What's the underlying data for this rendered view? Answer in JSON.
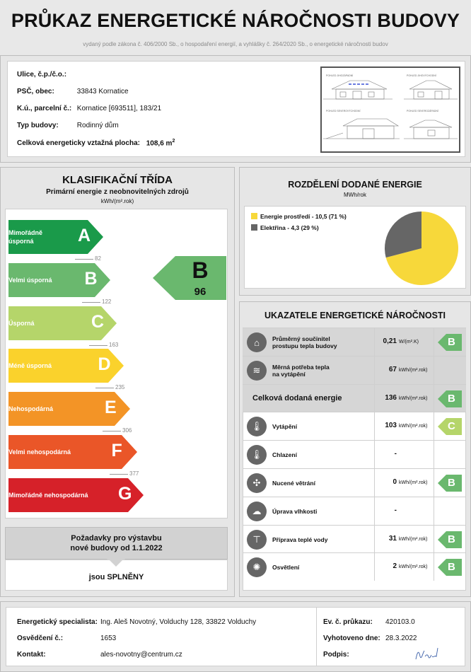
{
  "header": {
    "title": "PRŮKAZ ENERGETICKÉ NÁROČNOSTI BUDOVY",
    "subtitle": "vydaný podle zákona č. 406/2000 Sb., o hospodaření energií, a vyhlášky č. 264/2020 Sb., o energetické náročnosti budov"
  },
  "building": {
    "street_label": "Ulice, č.p./č.o.:",
    "street_value": "",
    "psc_label": "PSČ, obec:",
    "psc_value": "33843 Kornatice",
    "ku_label": "K.ú., parcelní č.:",
    "ku_value": "Kornatice [693511], 183/21",
    "type_label": "Typ budovy:",
    "type_value": "Rodinný dům",
    "area_label": "Celková energeticky vztažná plocha:",
    "area_value": "108,6 m",
    "area_sup": "2",
    "views": [
      "POHLED JIHOZÁPADNÍ",
      "POHLED JIHOVÝCHODNÍ",
      "POHLED SEVEROVÝCHODNÍ",
      "POHLED SEVEROZÁPADNÍ"
    ]
  },
  "classification": {
    "title": "KLASIFIKAČNÍ TŘÍDA",
    "subtitle": "Primární energie z neobnovitelných zdrojů",
    "unit": "kWh/(m².rok)",
    "classes": [
      {
        "letter": "A",
        "label": "Mimořádně úsporná",
        "color": "#1a9a4a"
      },
      {
        "letter": "B",
        "label": "Velmi úsporná",
        "color": "#6ab86e"
      },
      {
        "letter": "C",
        "label": "Úsporná",
        "color": "#b5d56a"
      },
      {
        "letter": "D",
        "label": "Méně úsporná",
        "color": "#fad22c"
      },
      {
        "letter": "E",
        "label": "Nehospodárná",
        "color": "#f39426"
      },
      {
        "letter": "F",
        "label": "Velmi nehospodárná",
        "color": "#ea5628"
      },
      {
        "letter": "G",
        "label": "Mimořádně nehospodárná",
        "color": "#d62129"
      }
    ],
    "thresholds": [
      "82",
      "122",
      "163",
      "235",
      "306",
      "377"
    ],
    "result_letter": "B",
    "result_value": "96",
    "requirements_title_1": "Požadavky pro výstavbu",
    "requirements_title_2": "nové budovy od 1.1.2022",
    "requirements_status": "jsou SPLNĚNY"
  },
  "distribution": {
    "title": "ROZDĚLENÍ DODANÉ ENERGIE",
    "unit": "MWh/rok",
    "legend": [
      {
        "label": "Energie prostředí - 10,5 (71 %)",
        "color": "#f7d83a"
      },
      {
        "label": "Elektřina - 4,3 (29 %)",
        "color": "#666666"
      }
    ],
    "chart_data": {
      "type": "pie",
      "categories": [
        "Energie prostředí",
        "Elektřina"
      ],
      "values": [
        10.5,
        4.3
      ],
      "percent": [
        71,
        29
      ],
      "unit": "MWh/rok"
    }
  },
  "indicators": {
    "title": "UKAZATELE ENERGETICKÉ NÁROČNOSTI",
    "rows": [
      {
        "icon": "house-icon",
        "name1": "Průměrný součinitel",
        "name2": "prostupu tepla budovy",
        "value": "0,21",
        "unit": "W/(m².K)",
        "badge": "B",
        "badge_color": "#6ab86e",
        "shaded": true
      },
      {
        "icon": "heat-waves-icon",
        "name1": "Měrná potřeba tepla",
        "name2": "na vytápění",
        "value": "67",
        "unit": "kWh/(m².rok)",
        "badge": "",
        "badge_color": "",
        "shaded": true
      },
      {
        "icon": "",
        "name1": "Celková dodaná energie",
        "name2": "",
        "value": "136",
        "unit": "kWh/(m².rok)",
        "badge": "B",
        "badge_color": "#6ab86e",
        "shaded": true,
        "big": true
      },
      {
        "icon": "thermometer-plus-icon",
        "name1": "Vytápění",
        "name2": "",
        "value": "103",
        "unit": "kWh/(m².rok)",
        "badge": "C",
        "badge_color": "#b5d56a",
        "shaded": false
      },
      {
        "icon": "thermometer-minus-icon",
        "name1": "Chlazení",
        "name2": "",
        "value": "-",
        "unit": "",
        "badge": "",
        "badge_color": "",
        "shaded": false
      },
      {
        "icon": "fan-icon",
        "name1": "Nucené větrání",
        "name2": "",
        "value": "0",
        "unit": "kWh/(m².rok)",
        "badge": "B",
        "badge_color": "#6ab86e",
        "shaded": false
      },
      {
        "icon": "humidity-icon",
        "name1": "Úprava vlhkosti",
        "name2": "",
        "value": "-",
        "unit": "",
        "badge": "",
        "badge_color": "",
        "shaded": false
      },
      {
        "icon": "faucet-icon",
        "name1": "Příprava teplé vody",
        "name2": "",
        "value": "31",
        "unit": "kWh/(m².rok)",
        "badge": "B",
        "badge_color": "#6ab86e",
        "shaded": false
      },
      {
        "icon": "light-bulb-icon",
        "name1": "Osvětlení",
        "name2": "",
        "value": "2",
        "unit": "kWh/(m².rok)",
        "badge": "B",
        "badge_color": "#6ab86e",
        "shaded": false
      }
    ]
  },
  "footer": {
    "specialist_label": "Energetický specialista:",
    "specialist_value": "Ing. Aleš Novotný, Volduchy 128, 33822 Volduchy",
    "cert_label": "Osvědčení č.:",
    "cert_value": "1653",
    "contact_label": "Kontakt:",
    "contact_value": "ales-novotny@centrum.cz",
    "ev_label": "Ev. č. průkazu:",
    "ev_value": "420103.0",
    "date_label": "Vyhotoveno dne:",
    "date_value": "28.3.2022",
    "sign_label": "Podpis:",
    "signature": "Novotný"
  }
}
